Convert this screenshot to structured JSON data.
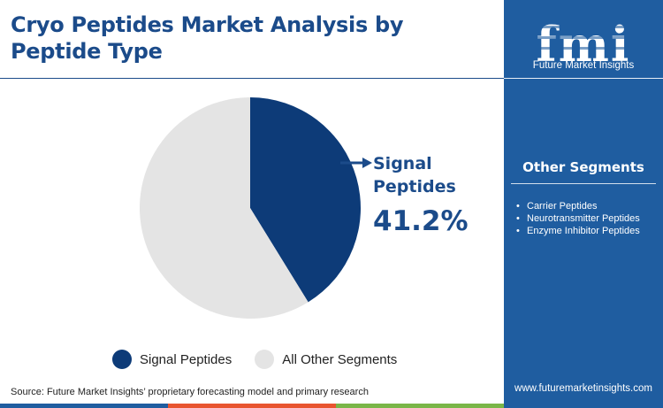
{
  "title": "Cryo Peptides Market Analysis by Peptide Type",
  "brand": {
    "logo_text": "fmi",
    "name": "Future Market Insights",
    "website": "www.futuremarketinsights.com"
  },
  "source": "Source: Future Market Insights’ proprietary forecasting model and primary research",
  "colors": {
    "primary": "#1b4b8a",
    "panel": "#1f5da0",
    "signal": "#0d3b78",
    "other": "#e4e4e4",
    "footer": [
      "#1f5da0",
      "#e8552f",
      "#7ab648",
      "#1f5da0"
    ]
  },
  "callout": {
    "label": "Signal Peptides",
    "value": "41.2%"
  },
  "chart_data": {
    "type": "pie",
    "slices": [
      {
        "label": "Signal Peptides",
        "value": 41.2,
        "color": "#0d3b78"
      },
      {
        "label": "All Other Segments",
        "value": 58.8,
        "color": "#e4e4e4"
      }
    ],
    "legend_position": "bottom"
  },
  "legend": [
    {
      "label": "Signal Peptides",
      "color": "#0d3b78"
    },
    {
      "label": "All Other Segments",
      "color": "#e4e4e4"
    }
  ],
  "other_segments": {
    "title": "Other Segments",
    "items": [
      "Carrier Peptides",
      "Neurotransmitter Peptides",
      "Enzyme Inhibitor Peptides"
    ]
  }
}
